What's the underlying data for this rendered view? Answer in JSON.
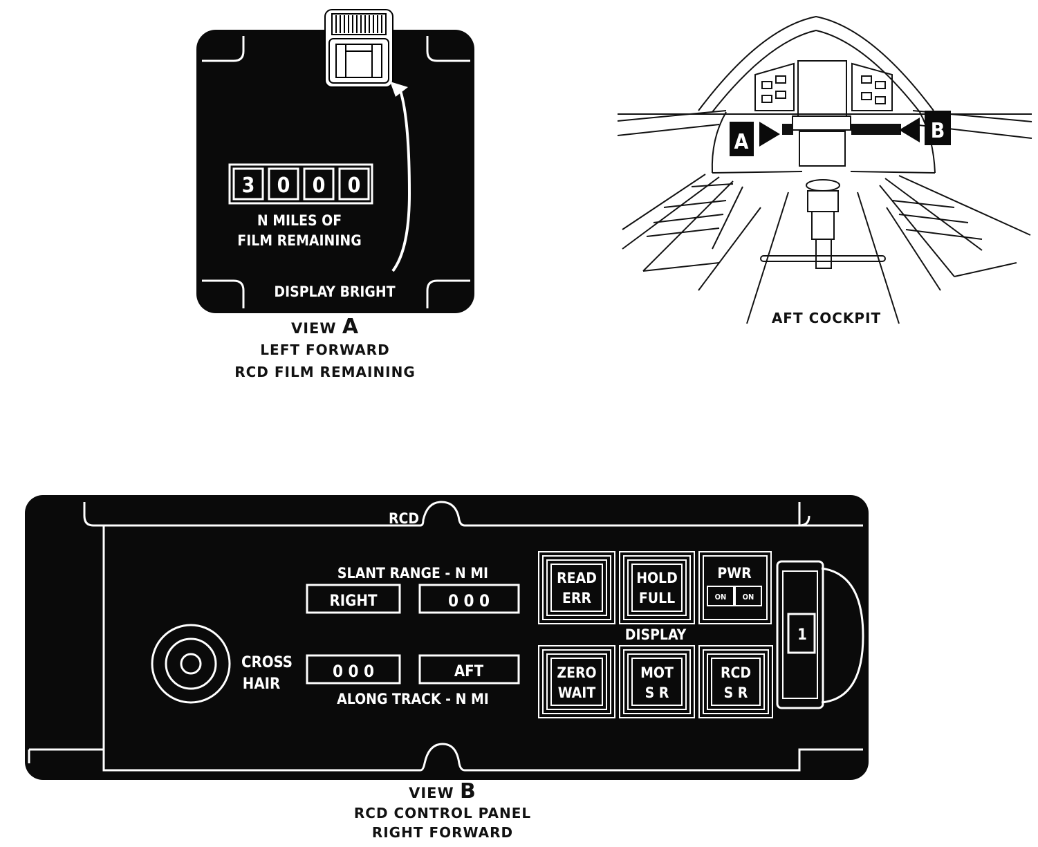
{
  "view_a": {
    "counter_digits": [
      "3",
      "0",
      "0",
      "0"
    ],
    "counter_caption_1": "N MILES OF",
    "counter_caption_2": "FILM REMAINING",
    "display_label": "DISPLAY BRIGHT",
    "view_word": "VIEW",
    "view_letter": "A",
    "caption_1": "LEFT FORWARD",
    "caption_2": "RCD FILM REMAINING"
  },
  "cockpit": {
    "marker_a": "A",
    "marker_b": "B",
    "caption": "AFT COCKPIT"
  },
  "view_b": {
    "panel_label": "RCD",
    "slant_range_label": "SLANT RANGE - N MI",
    "right_label": "RIGHT",
    "slant_digits": "0 0 0",
    "along_digits": "0 0 0",
    "aft_label": "AFT",
    "along_track_label": "ALONG TRACK - N MI",
    "cross_hair_1": "CROSS",
    "cross_hair_2": "HAIR",
    "display_label": "DISPLAY",
    "buttons": {
      "read_err": [
        "READ",
        "ERR"
      ],
      "hold_full": [
        "HOLD",
        "FULL"
      ],
      "pwr": [
        "PWR",
        "ON",
        "ON"
      ],
      "zero_wait": [
        "ZERO",
        "WAIT"
      ],
      "mot_sr": [
        "MOT",
        "S R"
      ],
      "rcd_sr": [
        "RCD",
        "S R"
      ]
    },
    "selector_value": "1",
    "view_word": "VIEW",
    "view_letter": "B",
    "caption_1": "RCD CONTROL PANEL",
    "caption_2": "RIGHT FORWARD"
  }
}
